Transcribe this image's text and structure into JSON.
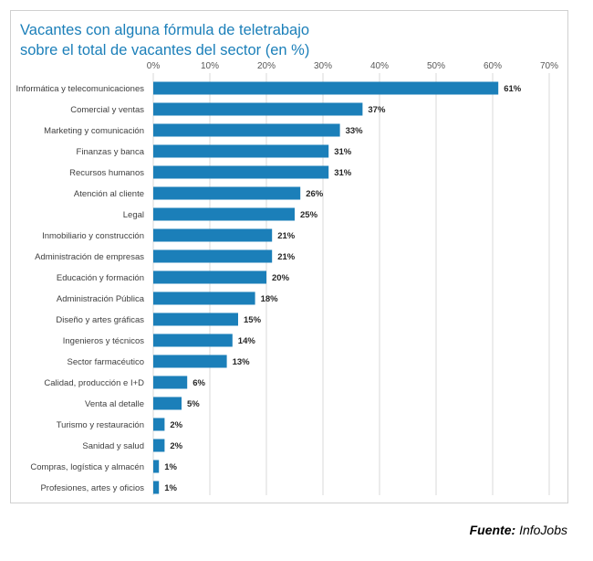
{
  "title_line1": "Vacantes con alguna fórmula de teletrabajo",
  "title_line2": "sobre el total de vacantes del sector (en %)",
  "source": {
    "label": "Fuente:",
    "name": "InfoJobs"
  },
  "colors": {
    "bar": "#1b7fb9",
    "title": "#1b7fb9",
    "grid": "#d9d9d9"
  },
  "chart_data": {
    "type": "bar",
    "orientation": "horizontal",
    "title": "Vacantes con alguna fórmula de teletrabajo sobre el total de vacantes del sector (en %)",
    "xlim": [
      0,
      70
    ],
    "xticks": [
      "0%",
      "10%",
      "20%",
      "30%",
      "40%",
      "50%",
      "60%",
      "70%"
    ],
    "xtick_values": [
      0,
      10,
      20,
      30,
      40,
      50,
      60,
      70
    ],
    "axis_position": "top",
    "grid": true,
    "categories": [
      "Informática y telecomunicaciones",
      "Comercial y ventas",
      "Marketing y comunicación",
      "Finanzas y banca",
      "Recursos humanos",
      "Atención al cliente",
      "Legal",
      "Inmobiliario y construcción",
      "Administración de empresas",
      "Educación y formación",
      "Administración Pública",
      "Diseño y artes gráficas",
      "Ingenieros y técnicos",
      "Sector farmacéutico",
      "Calidad, producción e I+D",
      "Venta al detalle",
      "Turismo y restauración",
      "Sanidad y salud",
      "Compras, logística y almacén",
      "Profesiones, artes y oficios"
    ],
    "values": [
      61,
      37,
      33,
      31,
      31,
      26,
      25,
      21,
      21,
      20,
      18,
      15,
      14,
      13,
      6,
      5,
      2,
      2,
      1,
      1
    ],
    "labels": [
      "61%",
      "37%",
      "33%",
      "31%",
      "31%",
      "26%",
      "25%",
      "21%",
      "21%",
      "20%",
      "18%",
      "15%",
      "14%",
      "13%",
      "6%",
      "5%",
      "2%",
      "2%",
      "1%",
      "1%"
    ]
  }
}
